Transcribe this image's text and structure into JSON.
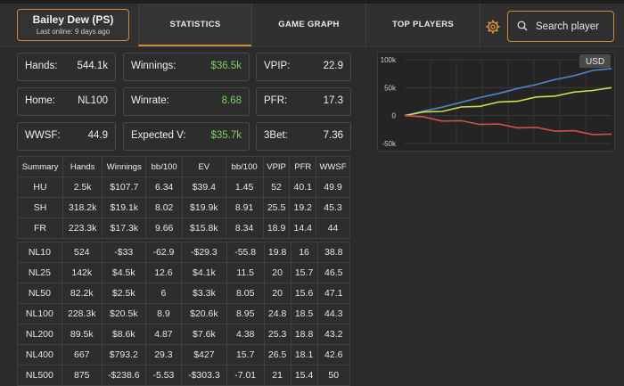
{
  "player": {
    "name": "Bailey Dew (PS)",
    "last_online": "Last online: 9 days ago"
  },
  "tabs": [
    {
      "label": "STATISTICS",
      "active": true
    },
    {
      "label": "GAME GRAPH",
      "active": false
    },
    {
      "label": "TOP PLAYERS",
      "active": false
    }
  ],
  "search": {
    "placeholder": "Search player"
  },
  "cards": {
    "hands": {
      "label": "Hands:",
      "value": "544.1k"
    },
    "winnings": {
      "label": "Winnings:",
      "value": "$36.5k"
    },
    "vpip": {
      "label": "VPIP:",
      "value": "22.9"
    },
    "home": {
      "label": "Home:",
      "value": "NL100"
    },
    "winrate": {
      "label": "Winrate:",
      "value": "8.68"
    },
    "pfr": {
      "label": "PFR:",
      "value": "17.3"
    },
    "wwsf": {
      "label": "WWSF:",
      "value": "44.9"
    },
    "expected": {
      "label": "Expected V:",
      "value": "$35.7k"
    },
    "threebet": {
      "label": "3Bet:",
      "value": "7.36"
    }
  },
  "colors": {
    "accent": "#d08a3a",
    "positive": "#7fcf68",
    "negative": "#e06a6a"
  },
  "table": {
    "headers": [
      "Summary",
      "Hands",
      "Winnings",
      "bb/100",
      "EV",
      "bb/100",
      "VPIP",
      "PFR",
      "WWSF"
    ],
    "summary_rows": [
      [
        "HU",
        "2.5k",
        "$107.7",
        "6.34",
        "$39.4",
        "1.45",
        "52",
        "40.1",
        "49.9"
      ],
      [
        "SH",
        "318.2k",
        "$19.1k",
        "8.02",
        "$19.9k",
        "8.91",
        "25.5",
        "19.2",
        "45.3"
      ],
      [
        "FR",
        "223.3k",
        "$17.3k",
        "9.66",
        "$15.8k",
        "8.34",
        "18.9",
        "14.4",
        "44"
      ]
    ],
    "limit_rows": [
      [
        "NL10",
        "524",
        "-$33",
        "-62.9",
        "-$29.3",
        "-55.8",
        "19.8",
        "16",
        "38.8"
      ],
      [
        "NL25",
        "142k",
        "$4.5k",
        "12.6",
        "$4.1k",
        "11.5",
        "20",
        "15.7",
        "46.5"
      ],
      [
        "NL50",
        "82.2k",
        "$2.5k",
        "6",
        "$3.3k",
        "8.05",
        "20",
        "15.6",
        "47.1"
      ],
      [
        "NL100",
        "228.3k",
        "$20.5k",
        "8.9",
        "$20.6k",
        "8.95",
        "24.8",
        "18.5",
        "44.3"
      ],
      [
        "NL200",
        "89.5k",
        "$8.6k",
        "4.87",
        "$7.6k",
        "4.38",
        "25.3",
        "18.8",
        "43.2"
      ],
      [
        "NL400",
        "667",
        "$793.2",
        "29.3",
        "$427",
        "15.7",
        "26.5",
        "18.1",
        "42.6"
      ],
      [
        "NL500",
        "875",
        "-$238.6",
        "-5.53",
        "-$303.3",
        "-7.01",
        "21",
        "15.4",
        "50"
      ]
    ]
  },
  "chart_data": {
    "type": "line",
    "badge": "USD",
    "y_ticks": [
      "100k",
      "50k",
      "0",
      "-50k"
    ],
    "ylim": [
      -50000,
      100000
    ],
    "grid": true,
    "series": [
      {
        "color": "#4f86c6",
        "values": [
          0,
          8000,
          15000,
          24000,
          32000,
          40000,
          48000,
          56000,
          64000,
          72000,
          80000,
          85000
        ]
      },
      {
        "color": "#c8e04a",
        "values": [
          0,
          5000,
          9000,
          14000,
          18000,
          23000,
          27000,
          32000,
          36000,
          41000,
          46000,
          49000
        ]
      },
      {
        "color": "#d05050",
        "values": [
          0,
          -4000,
          -8000,
          -11000,
          -14000,
          -17000,
          -20000,
          -23000,
          -26000,
          -29000,
          -32000,
          -35000
        ]
      }
    ]
  }
}
